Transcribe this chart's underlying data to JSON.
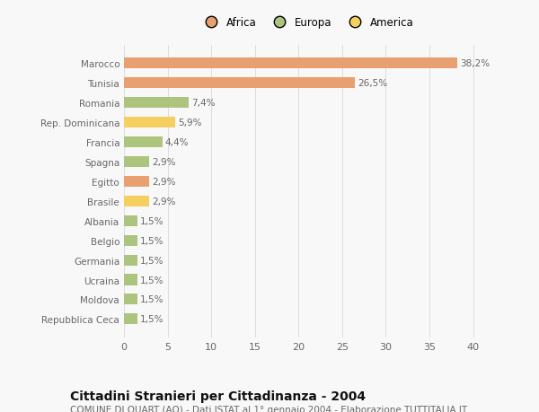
{
  "categories": [
    "Repubblica Ceca",
    "Moldova",
    "Ucraina",
    "Germania",
    "Belgio",
    "Albania",
    "Brasile",
    "Egitto",
    "Spagna",
    "Francia",
    "Rep. Dominicana",
    "Romania",
    "Tunisia",
    "Marocco"
  ],
  "values": [
    1.5,
    1.5,
    1.5,
    1.5,
    1.5,
    1.5,
    2.9,
    2.9,
    2.9,
    4.4,
    5.9,
    7.4,
    26.5,
    38.2
  ],
  "labels": [
    "1,5%",
    "1,5%",
    "1,5%",
    "1,5%",
    "1,5%",
    "1,5%",
    "2,9%",
    "2,9%",
    "2,9%",
    "4,4%",
    "5,9%",
    "7,4%",
    "26,5%",
    "38,2%"
  ],
  "colors": [
    "#adc47e",
    "#adc47e",
    "#adc47e",
    "#adc47e",
    "#adc47e",
    "#adc47e",
    "#f5d060",
    "#e9a070",
    "#adc47e",
    "#adc47e",
    "#f5d060",
    "#adc47e",
    "#e9a070",
    "#e9a070"
  ],
  "legend_items": [
    {
      "label": "Africa",
      "color": "#e9a070"
    },
    {
      "label": "Europa",
      "color": "#adc47e"
    },
    {
      "label": "America",
      "color": "#f5d060"
    }
  ],
  "xlim": [
    0,
    42
  ],
  "xticks": [
    0,
    5,
    10,
    15,
    20,
    25,
    30,
    35,
    40
  ],
  "title": "Cittadini Stranieri per Cittadinanza - 2004",
  "subtitle": "COMUNE DI QUART (AO) - Dati ISTAT al 1° gennaio 2004 - Elaborazione TUTTITALIA.IT",
  "bg_color": "#f8f8f8",
  "bar_height": 0.55,
  "label_fontsize": 7.5,
  "ytick_fontsize": 7.5,
  "xtick_fontsize": 8,
  "title_fontsize": 10,
  "subtitle_fontsize": 7.5,
  "grid_color": "#dddddd",
  "text_color": "#666666",
  "title_color": "#111111"
}
